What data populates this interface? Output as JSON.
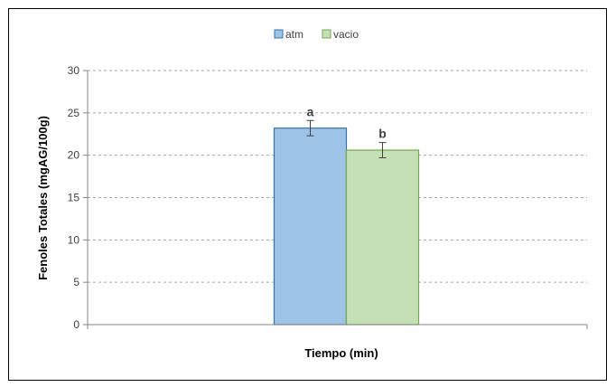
{
  "chart_data": {
    "type": "bar",
    "xlabel": "Tiempo (min)",
    "ylabel": "Fenoles Totales (mgAG/100g)",
    "ylim": [
      0,
      30
    ],
    "yticks": [
      0,
      5,
      10,
      15,
      20,
      25,
      30
    ],
    "grid": true,
    "legend_position": "top-center",
    "categories": [
      ""
    ],
    "series": [
      {
        "name": "atm",
        "values": [
          23.2
        ],
        "error": [
          0.9
        ],
        "label": "a",
        "color": "#9DC3E6",
        "edge": "#2E75B6"
      },
      {
        "name": "vacio",
        "values": [
          20.6
        ],
        "error": [
          0.9
        ],
        "label": "b",
        "color": "#C5E0B4",
        "edge": "#70AD47"
      }
    ]
  }
}
